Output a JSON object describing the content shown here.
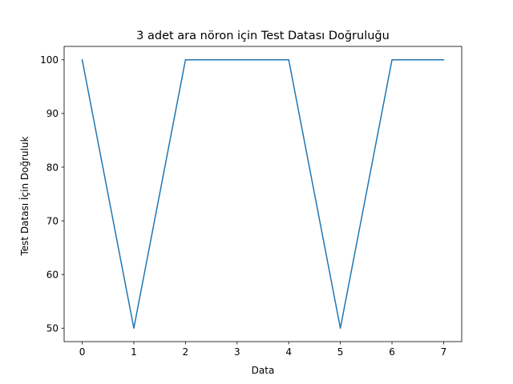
{
  "chart_data": {
    "type": "line",
    "title": "3 adet ara nöron için Test Datası Doğruluğu",
    "xlabel": "Data",
    "ylabel": "Test Datası İçin Doğruluk",
    "x": [
      0,
      1,
      2,
      3,
      4,
      5,
      6,
      7
    ],
    "y": [
      100,
      50,
      100,
      100,
      100,
      50,
      100,
      100
    ],
    "xlim": [
      -0.35,
      7.35
    ],
    "ylim": [
      47.5,
      102.5
    ],
    "xticks": [
      0,
      1,
      2,
      3,
      4,
      5,
      6,
      7
    ],
    "yticks": [
      50,
      60,
      70,
      80,
      90,
      100
    ],
    "grid": false,
    "line_color": "#1f77b4"
  }
}
